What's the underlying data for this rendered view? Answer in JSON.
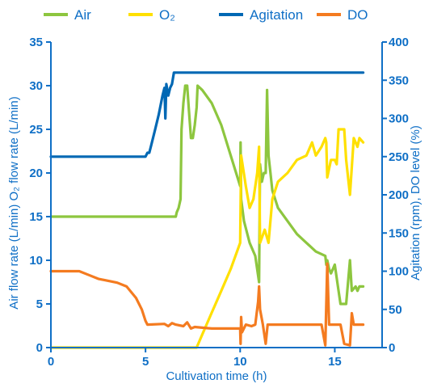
{
  "chart_data": {
    "type": "line",
    "xlabel": "Cultivation time (h)",
    "ylabel_left": "Air flow rate (L/min)   O₂ flow rate (L/min)",
    "ylabel_right": "Agitation (rpm), DO level (%)",
    "xlim": [
      0,
      17.5
    ],
    "ylim_left": [
      0,
      35
    ],
    "ylim_right": [
      0,
      400
    ],
    "x_ticks": [
      0,
      5,
      10,
      15
    ],
    "y_left_ticks": [
      0,
      5,
      10,
      15,
      20,
      25,
      30,
      35
    ],
    "y_right_ticks": [
      0,
      50,
      100,
      150,
      200,
      250,
      300,
      350,
      400
    ],
    "grid": false,
    "legend_position": "top",
    "series": [
      {
        "name": "Air",
        "axis": "left",
        "color": "#8dc63f",
        "points": [
          [
            0,
            15
          ],
          [
            6.6,
            15
          ],
          [
            6.65,
            15.5
          ],
          [
            6.75,
            16
          ],
          [
            6.85,
            17
          ],
          [
            6.9,
            25
          ],
          [
            7.0,
            28
          ],
          [
            7.1,
            30
          ],
          [
            7.2,
            30
          ],
          [
            7.3,
            27
          ],
          [
            7.4,
            24
          ],
          [
            7.5,
            24
          ],
          [
            7.6,
            25.5
          ],
          [
            7.7,
            27.5
          ],
          [
            7.75,
            30
          ],
          [
            8.0,
            29.5
          ],
          [
            8.5,
            28
          ],
          [
            9.0,
            25.5
          ],
          [
            9.5,
            22
          ],
          [
            10.0,
            18.5
          ],
          [
            10.02,
            23.5
          ],
          [
            10.05,
            17
          ],
          [
            10.2,
            14.5
          ],
          [
            10.5,
            12
          ],
          [
            10.8,
            10.5
          ],
          [
            11.0,
            7.5
          ],
          [
            11.05,
            21
          ],
          [
            11.15,
            19
          ],
          [
            11.25,
            20
          ],
          [
            11.35,
            20
          ],
          [
            11.42,
            29.5
          ],
          [
            11.5,
            22
          ],
          [
            11.6,
            20
          ],
          [
            11.7,
            18
          ],
          [
            12.0,
            16
          ],
          [
            12.5,
            14.5
          ],
          [
            13.0,
            13
          ],
          [
            13.5,
            12
          ],
          [
            14.0,
            11
          ],
          [
            14.5,
            10.5
          ],
          [
            14.55,
            9.5
          ],
          [
            14.6,
            10
          ],
          [
            14.7,
            9
          ],
          [
            14.8,
            8.5
          ],
          [
            14.9,
            9
          ],
          [
            15.0,
            9.5
          ],
          [
            15.2,
            6.5
          ],
          [
            15.3,
            5
          ],
          [
            15.6,
            5
          ],
          [
            15.8,
            10
          ],
          [
            15.9,
            6.5
          ],
          [
            16.1,
            7
          ],
          [
            16.2,
            6.5
          ],
          [
            16.3,
            7
          ],
          [
            16.5,
            7
          ]
        ]
      },
      {
        "name": "O₂",
        "axis": "left",
        "color": "#ffe000",
        "points": [
          [
            0,
            0
          ],
          [
            7.7,
            0
          ],
          [
            8.0,
            1.5
          ],
          [
            8.5,
            4
          ],
          [
            9.0,
            6.5
          ],
          [
            9.5,
            9
          ],
          [
            10.0,
            12
          ],
          [
            10.05,
            22
          ],
          [
            10.3,
            18.5
          ],
          [
            10.5,
            16
          ],
          [
            10.7,
            17
          ],
          [
            10.9,
            20
          ],
          [
            11.0,
            23
          ],
          [
            11.05,
            12
          ],
          [
            11.3,
            13.5
          ],
          [
            11.5,
            12
          ],
          [
            11.7,
            17
          ],
          [
            12.0,
            19
          ],
          [
            12.5,
            20
          ],
          [
            13.0,
            21.5
          ],
          [
            13.5,
            22
          ],
          [
            13.8,
            23.5
          ],
          [
            14.0,
            22
          ],
          [
            14.3,
            23
          ],
          [
            14.5,
            24
          ],
          [
            14.55,
            23.5
          ],
          [
            14.6,
            19.5
          ],
          [
            14.8,
            21.5
          ],
          [
            15.0,
            21.5
          ],
          [
            15.1,
            21
          ],
          [
            15.2,
            25
          ],
          [
            15.5,
            25
          ],
          [
            15.6,
            21.5
          ],
          [
            15.8,
            17.5
          ],
          [
            16.0,
            24
          ],
          [
            16.2,
            23
          ],
          [
            16.3,
            24
          ],
          [
            16.5,
            23.5
          ]
        ]
      },
      {
        "name": "Agitation",
        "axis": "right",
        "color": "#0068b4",
        "points": [
          [
            0,
            250
          ],
          [
            5.0,
            250
          ],
          [
            5.1,
            255
          ],
          [
            5.2,
            255
          ],
          [
            5.3,
            265
          ],
          [
            5.5,
            285
          ],
          [
            5.7,
            305
          ],
          [
            5.9,
            330
          ],
          [
            6.0,
            340
          ],
          [
            6.05,
            300
          ],
          [
            6.1,
            345
          ],
          [
            6.2,
            330
          ],
          [
            6.3,
            340
          ],
          [
            6.4,
            345
          ],
          [
            6.5,
            360
          ],
          [
            16.5,
            360
          ]
        ]
      },
      {
        "name": "DO",
        "axis": "right",
        "color": "#f47b20",
        "points": [
          [
            0,
            100
          ],
          [
            1.5,
            100
          ],
          [
            2.0,
            95
          ],
          [
            2.5,
            90
          ],
          [
            3.5,
            85
          ],
          [
            4.0,
            80
          ],
          [
            4.5,
            65
          ],
          [
            4.8,
            50
          ],
          [
            5.0,
            35
          ],
          [
            5.1,
            30
          ],
          [
            6.0,
            31
          ],
          [
            6.2,
            28
          ],
          [
            6.4,
            32
          ],
          [
            6.6,
            30
          ],
          [
            7.0,
            28
          ],
          [
            7.2,
            33
          ],
          [
            7.4,
            25
          ],
          [
            7.6,
            27
          ],
          [
            8.0,
            26
          ],
          [
            8.5,
            25
          ],
          [
            9.0,
            25
          ],
          [
            9.5,
            25
          ],
          [
            10.0,
            25
          ],
          [
            10.02,
            5
          ],
          [
            10.05,
            40
          ],
          [
            10.1,
            20
          ],
          [
            10.3,
            30
          ],
          [
            10.6,
            28
          ],
          [
            10.8,
            30
          ],
          [
            10.95,
            60
          ],
          [
            11.0,
            80
          ],
          [
            11.05,
            50
          ],
          [
            11.2,
            30
          ],
          [
            11.35,
            5
          ],
          [
            11.45,
            30
          ],
          [
            11.8,
            30
          ],
          [
            12.5,
            30
          ],
          [
            13.5,
            30
          ],
          [
            14.3,
            30
          ],
          [
            14.5,
            3
          ],
          [
            14.6,
            110
          ],
          [
            14.7,
            30
          ],
          [
            15.0,
            30
          ],
          [
            15.3,
            30
          ],
          [
            15.5,
            5
          ],
          [
            15.8,
            3
          ],
          [
            15.9,
            45
          ],
          [
            16.0,
            30
          ],
          [
            16.5,
            30
          ]
        ]
      }
    ]
  }
}
